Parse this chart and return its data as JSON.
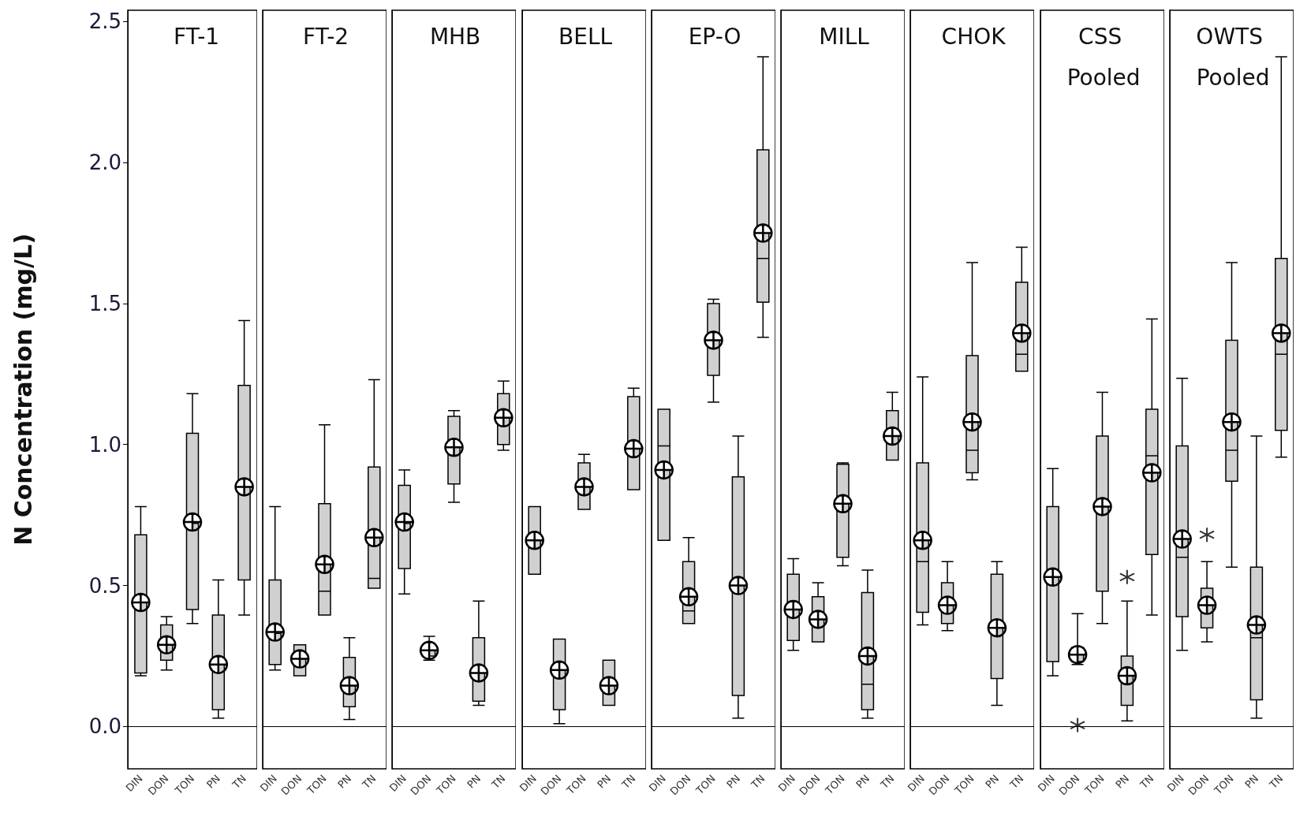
{
  "chart_data": [
    {
      "type": "box",
      "title": "FT-1",
      "ylabel": "N Concentration (mg/L)",
      "color": "#d0d0d0",
      "categories": [
        "DIN",
        "DON",
        "TON",
        "PN",
        "TN"
      ],
      "ylim": [
        -0.15,
        2.54
      ],
      "yticks": [
        {
          "value": 0,
          "label": "0.0"
        },
        {
          "value": 0.5,
          "label": "0.5"
        },
        {
          "value": 1,
          "label": "1.0"
        },
        {
          "value": 1.5,
          "label": "1.5"
        },
        {
          "value": 2,
          "label": "2.0"
        },
        {
          "value": 2.5,
          "label": "2.5"
        }
      ],
      "boxes": [
        {
          "low": 0.18,
          "q1": 0.19,
          "median": 0.44,
          "q3": 0.68,
          "high": 0.78,
          "mean": 0.44
        },
        {
          "low": 0.2,
          "q1": 0.235,
          "median": 0.29,
          "q3": 0.36,
          "high": 0.39,
          "mean": 0.29
        },
        {
          "low": 0.365,
          "q1": 0.415,
          "median": 0.72,
          "q3": 1.04,
          "high": 1.18,
          "mean": 0.725
        },
        {
          "low": 0.03,
          "q1": 0.06,
          "median": 0.22,
          "q3": 0.395,
          "high": 0.52,
          "mean": 0.22
        },
        {
          "low": 0.395,
          "q1": 0.52,
          "median": 0.85,
          "q3": 1.21,
          "high": 1.44,
          "mean": 0.85
        }
      ]
    },
    {
      "type": "box",
      "title": "FT-2",
      "tick_labels": "x",
      "color": "#d0d0d0",
      "categories": [
        "DIN",
        "DON",
        "TON",
        "PN",
        "TN"
      ],
      "ylim": [
        -0.15,
        2.54
      ],
      "boxes": [
        {
          "low": 0.2,
          "q1": 0.22,
          "median": 0.33,
          "q3": 0.52,
          "high": 0.78,
          "mean": 0.335
        },
        {
          "low": 0.18,
          "q1": 0.18,
          "median": 0.24,
          "q3": 0.29,
          "high": 0.29,
          "mean": 0.24
        },
        {
          "low": 0.395,
          "q1": 0.395,
          "median": 0.48,
          "q3": 0.79,
          "high": 1.07,
          "mean": 0.575
        },
        {
          "low": 0.025,
          "q1": 0.07,
          "median": 0.145,
          "q3": 0.245,
          "high": 0.315,
          "mean": 0.145
        },
        {
          "low": 0.49,
          "q1": 0.49,
          "median": 0.525,
          "q3": 0.92,
          "high": 1.23,
          "mean": 0.67
        }
      ]
    },
    {
      "type": "box",
      "title": "MHB",
      "tick_labels": "x",
      "color": "#d0d0d0",
      "categories": [
        "DIN",
        "DON",
        "TON",
        "PN",
        "TN"
      ],
      "ylim": [
        -0.15,
        2.54
      ],
      "boxes": [
        {
          "low": 0.47,
          "q1": 0.56,
          "median": 0.72,
          "q3": 0.855,
          "high": 0.91,
          "mean": 0.725
        },
        {
          "low": 0.235,
          "q1": 0.25,
          "median": 0.27,
          "q3": 0.29,
          "high": 0.32,
          "mean": 0.27
        },
        {
          "low": 0.795,
          "q1": 0.86,
          "median": 0.99,
          "q3": 1.1,
          "high": 1.12,
          "mean": 0.99
        },
        {
          "low": 0.075,
          "q1": 0.09,
          "median": 0.19,
          "q3": 0.315,
          "high": 0.445,
          "mean": 0.19
        },
        {
          "low": 0.98,
          "q1": 1.0,
          "median": 1.095,
          "q3": 1.18,
          "high": 1.225,
          "mean": 1.095
        }
      ]
    },
    {
      "type": "box",
      "title": "BELL",
      "tick_labels": "x",
      "color": "#d0d0d0",
      "categories": [
        "DIN",
        "DON",
        "TON",
        "PN",
        "TN"
      ],
      "ylim": [
        -0.15,
        2.54
      ],
      "boxes": [
        {
          "low": 0.54,
          "q1": 0.54,
          "median": 0.66,
          "q3": 0.78,
          "high": 0.78,
          "mean": 0.66
        },
        {
          "low": 0.01,
          "q1": 0.06,
          "median": 0.2,
          "q3": 0.31,
          "high": 0.31,
          "mean": 0.2
        },
        {
          "low": 0.77,
          "q1": 0.77,
          "median": 0.85,
          "q3": 0.935,
          "high": 0.965,
          "mean": 0.85
        },
        {
          "low": 0.075,
          "q1": 0.075,
          "median": 0.145,
          "q3": 0.235,
          "high": 0.235,
          "mean": 0.145
        },
        {
          "low": 0.84,
          "q1": 0.84,
          "median": 0.985,
          "q3": 1.17,
          "high": 1.2,
          "mean": 0.985
        }
      ]
    },
    {
      "type": "box",
      "title": "EP-O",
      "tick_labels": "x",
      "color": "#d0d0d0",
      "categories": [
        "DIN",
        "DON",
        "TON",
        "PN",
        "TN"
      ],
      "ylim": [
        -0.15,
        2.54
      ],
      "boxes": [
        {
          "low": 0.66,
          "q1": 0.66,
          "median": 0.995,
          "q3": 1.125,
          "high": 1.125,
          "mean": 0.91
        },
        {
          "low": 0.365,
          "q1": 0.365,
          "median": 0.41,
          "q3": 0.585,
          "high": 0.67,
          "mean": 0.46
        },
        {
          "low": 1.15,
          "q1": 1.245,
          "median": 1.37,
          "q3": 1.5,
          "high": 1.515,
          "mean": 1.37
        },
        {
          "low": 0.03,
          "q1": 0.11,
          "median": 0.5,
          "q3": 0.885,
          "high": 1.03,
          "mean": 0.5
        },
        {
          "low": 1.38,
          "q1": 1.505,
          "median": 1.66,
          "q3": 2.045,
          "high": 2.375,
          "mean": 1.75
        }
      ]
    },
    {
      "type": "box",
      "title": "MILL",
      "tick_labels": "x",
      "color": "#d0d0d0",
      "categories": [
        "DIN",
        "DON",
        "TON",
        "PN",
        "TN"
      ],
      "ylim": [
        -0.15,
        2.54
      ],
      "boxes": [
        {
          "low": 0.27,
          "q1": 0.305,
          "median": 0.415,
          "q3": 0.54,
          "high": 0.595,
          "mean": 0.415
        },
        {
          "low": 0.3,
          "q1": 0.3,
          "median": 0.38,
          "q3": 0.46,
          "high": 0.51,
          "mean": 0.38
        },
        {
          "low": 0.57,
          "q1": 0.6,
          "median": 0.79,
          "q3": 0.93,
          "high": 0.935,
          "mean": 0.79
        },
        {
          "low": 0.03,
          "q1": 0.06,
          "median": 0.15,
          "q3": 0.475,
          "high": 0.555,
          "mean": 0.25
        },
        {
          "low": 0.945,
          "q1": 0.945,
          "median": 1.03,
          "q3": 1.12,
          "high": 1.185,
          "mean": 1.03
        }
      ]
    },
    {
      "type": "box",
      "title": "CHOK",
      "tick_labels": "x",
      "color": "#d0d0d0",
      "categories": [
        "DIN",
        "DON",
        "TON",
        "PN",
        "TN"
      ],
      "ylim": [
        -0.15,
        2.54
      ],
      "boxes": [
        {
          "low": 0.36,
          "q1": 0.405,
          "median": 0.585,
          "q3": 0.935,
          "high": 1.24,
          "mean": 0.66
        },
        {
          "low": 0.34,
          "q1": 0.365,
          "median": 0.43,
          "q3": 0.51,
          "high": 0.585,
          "mean": 0.43
        },
        {
          "low": 0.875,
          "q1": 0.9,
          "median": 0.98,
          "q3": 1.315,
          "high": 1.645,
          "mean": 1.08
        },
        {
          "low": 0.075,
          "q1": 0.17,
          "median": 0.35,
          "q3": 0.54,
          "high": 0.585,
          "mean": 0.35
        },
        {
          "low": 1.26,
          "q1": 1.26,
          "median": 1.32,
          "q3": 1.575,
          "high": 1.7,
          "mean": 1.395
        }
      ]
    },
    {
      "type": "box",
      "title": "CSS Pooled",
      "tick_labels": "x",
      "color": "#d0d0d0",
      "categories": [
        "DIN",
        "DON",
        "TON",
        "PN",
        "TN"
      ],
      "ylim": [
        -0.15,
        2.54
      ],
      "boxes": [
        {
          "low": 0.18,
          "q1": 0.23,
          "median": 0.53,
          "q3": 0.78,
          "high": 0.915,
          "mean": 0.53
        },
        {
          "low": 0.22,
          "q1": 0.23,
          "median": 0.255,
          "q3": 0.28,
          "high": 0.4,
          "mean": 0.255,
          "outliers": [
            0.005
          ]
        },
        {
          "low": 0.365,
          "q1": 0.48,
          "median": 0.78,
          "q3": 1.03,
          "high": 1.185,
          "mean": 0.78
        },
        {
          "low": 0.02,
          "q1": 0.075,
          "median": 0.18,
          "q3": 0.25,
          "high": 0.445,
          "mean": 0.18,
          "outliers": [
            0.53
          ]
        },
        {
          "low": 0.395,
          "q1": 0.61,
          "median": 0.96,
          "q3": 1.125,
          "high": 1.445,
          "mean": 0.9
        }
      ]
    },
    {
      "type": "box",
      "title": "OWTS Pooled",
      "tick_labels": "x",
      "color": "#d0d0d0",
      "categories": [
        "DIN",
        "DON",
        "TON",
        "PN",
        "TN"
      ],
      "ylim": [
        -0.15,
        2.54
      ],
      "boxes": [
        {
          "low": 0.27,
          "q1": 0.39,
          "median": 0.6,
          "q3": 0.995,
          "high": 1.235,
          "mean": 0.665
        },
        {
          "low": 0.3,
          "q1": 0.35,
          "median": 0.43,
          "q3": 0.49,
          "high": 0.585,
          "mean": 0.43,
          "outliers": [
            0.68
          ]
        },
        {
          "low": 0.565,
          "q1": 0.87,
          "median": 0.98,
          "q3": 1.37,
          "high": 1.645,
          "mean": 1.08
        },
        {
          "low": 0.03,
          "q1": 0.095,
          "median": 0.315,
          "q3": 0.565,
          "high": 1.03,
          "mean": 0.36
        },
        {
          "low": 0.955,
          "q1": 1.05,
          "median": 1.32,
          "q3": 1.66,
          "high": 2.375,
          "mean": 1.395
        }
      ]
    }
  ]
}
